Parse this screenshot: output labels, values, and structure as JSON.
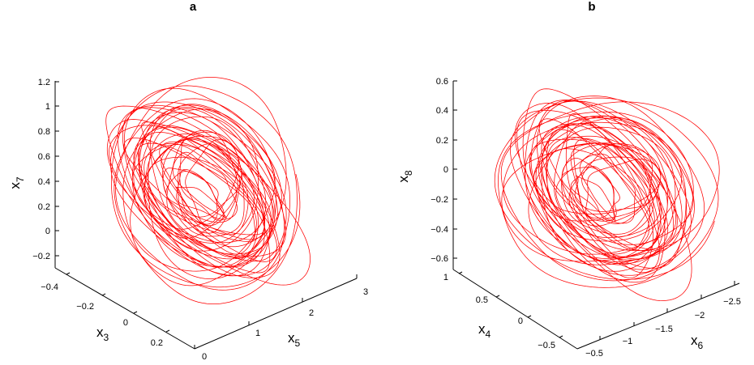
{
  "chart_data": [
    {
      "type": "line",
      "panel_label": "a",
      "projection": "3d",
      "series": [
        {
          "color": "#ff0000"
        }
      ],
      "axes": {
        "x": {
          "label": "x",
          "sub": "5",
          "range": [
            0,
            3
          ],
          "ticks": [
            "0",
            "1",
            "2",
            "3"
          ]
        },
        "y": {
          "label": "x",
          "sub": "3",
          "range": [
            -0.4,
            0.2
          ],
          "ticks": [
            "−0.4",
            "−0.2",
            "0",
            "0.2"
          ]
        },
        "z": {
          "label": "x",
          "sub": "7",
          "range": [
            -0.2,
            1.2
          ],
          "ticks": [
            "−0.2",
            "0",
            "0.2",
            "0.4",
            "0.6",
            "0.8",
            "1",
            "1.2"
          ]
        }
      },
      "grid": false
    },
    {
      "type": "line",
      "panel_label": "b",
      "projection": "3d",
      "series": [
        {
          "color": "#ff0000"
        }
      ],
      "axes": {
        "x": {
          "label": "x",
          "sub": "6",
          "range": [
            -0.5,
            -2.5
          ],
          "ticks": [
            "−0.5",
            "−1",
            "−1.5",
            "−2",
            "−2.5"
          ]
        },
        "y": {
          "label": "x",
          "sub": "4",
          "range": [
            1,
            -0.5
          ],
          "ticks": [
            "1",
            "0.5",
            "0",
            "−0.5"
          ]
        },
        "z": {
          "label": "x",
          "sub": "8",
          "range": [
            -0.6,
            0.6
          ],
          "ticks": [
            "−0.6",
            "−0.4",
            "−0.2",
            "0",
            "0.2",
            "0.4",
            "0.6"
          ]
        }
      },
      "grid": false
    }
  ]
}
